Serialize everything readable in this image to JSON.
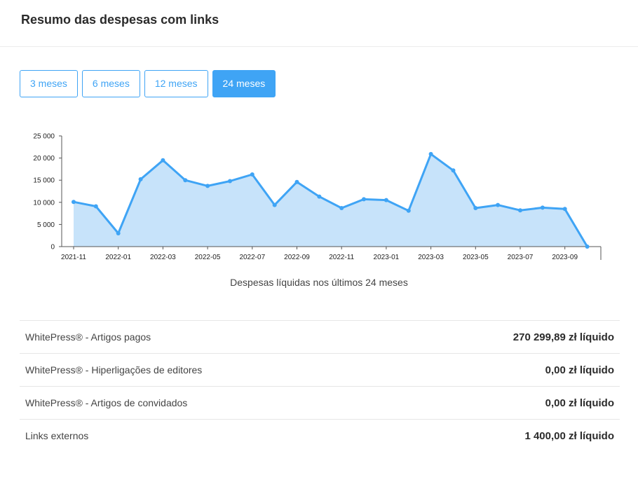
{
  "header": {
    "title": "Resumo das despesas com links"
  },
  "tabs": [
    {
      "label": "3 meses",
      "active": false
    },
    {
      "label": "6 meses",
      "active": false
    },
    {
      "label": "12 meses",
      "active": false
    },
    {
      "label": "24 meses",
      "active": true
    }
  ],
  "chart_data": {
    "type": "area",
    "title": "",
    "caption": "Despesas líquidas nos últimos 24 meses",
    "xlabel": "",
    "ylabel": "",
    "x_tick_labels": [
      "2021-11",
      "2022-01",
      "2022-03",
      "2022-05",
      "2022-07",
      "2022-09",
      "2022-11",
      "2023-01",
      "2023-03",
      "2023-05",
      "2023-07",
      "2023-09"
    ],
    "y_tick_labels": [
      "0",
      "5 000",
      "10 000",
      "15 000",
      "20 000",
      "25 000"
    ],
    "y_ticks": [
      0,
      5000,
      10000,
      15000,
      20000,
      25000
    ],
    "ylim": [
      0,
      25000
    ],
    "x": [
      "2021-11",
      "2021-12",
      "2022-01",
      "2022-02",
      "2022-03",
      "2022-04",
      "2022-05",
      "2022-06",
      "2022-07",
      "2022-08",
      "2022-09",
      "2022-10",
      "2022-11",
      "2022-12",
      "2023-01",
      "2023-02",
      "2023-03",
      "2023-04",
      "2023-05",
      "2023-06",
      "2023-07",
      "2023-08",
      "2023-09",
      "2023-10"
    ],
    "values": [
      10100,
      9100,
      3000,
      15200,
      19500,
      15000,
      13700,
      14800,
      16300,
      9400,
      14600,
      11300,
      8700,
      10700,
      10500,
      8100,
      20900,
      17200,
      8700,
      9400,
      8200,
      8800,
      8500,
      0
    ],
    "line_color": "#3fa4f5",
    "fill_color": "#c7e3fa",
    "grid": false
  },
  "summary": [
    {
      "label": "WhitePress® - Artigos pagos",
      "value": "270 299,89 zł líquido"
    },
    {
      "label": "WhitePress® - Hiperligações de editores",
      "value": "0,00 zł líquido"
    },
    {
      "label": "WhitePress® - Artigos de convidados",
      "value": "0,00 zł líquido"
    },
    {
      "label": "Links externos",
      "value": "1 400,00 zł líquido"
    }
  ]
}
